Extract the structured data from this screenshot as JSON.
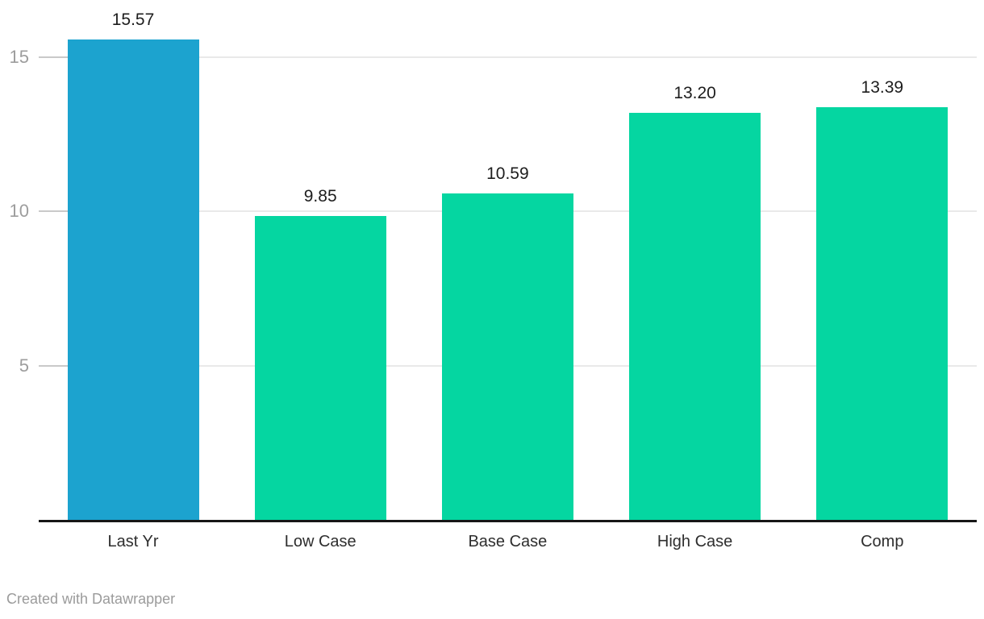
{
  "chart_data": {
    "type": "bar",
    "categories": [
      "Last Yr",
      "Low Case",
      "Base Case",
      "High Case",
      "Comp"
    ],
    "values": [
      15.57,
      9.85,
      10.59,
      13.2,
      13.39
    ],
    "value_labels": [
      "15.57",
      "9.85",
      "10.59",
      "13.20",
      "13.39"
    ],
    "bar_colors": [
      "#1ca3cf",
      "#05d6a1",
      "#05d6a1",
      "#05d6a1",
      "#05d6a1"
    ],
    "yticks": [
      5,
      10,
      15
    ],
    "ytick_labels": [
      "5",
      "10",
      "15"
    ],
    "ylim": [
      0,
      16.85
    ],
    "grid": true,
    "legend": "none",
    "title": "",
    "xlabel": "",
    "ylabel": ""
  },
  "colors": {
    "bar_blue": "#1ca3cf",
    "bar_green": "#05d6a1",
    "gridline": "#e9e9e9",
    "tick_stub": "#c9c9c9",
    "axis_line": "#161616",
    "ytick_text": "#9d9d9d",
    "value_text": "#1d1d1d",
    "category_text": "#2e2e2e",
    "credit_text": "#9b9b9b"
  },
  "footer": {
    "credit": "Created with Datawrapper"
  }
}
